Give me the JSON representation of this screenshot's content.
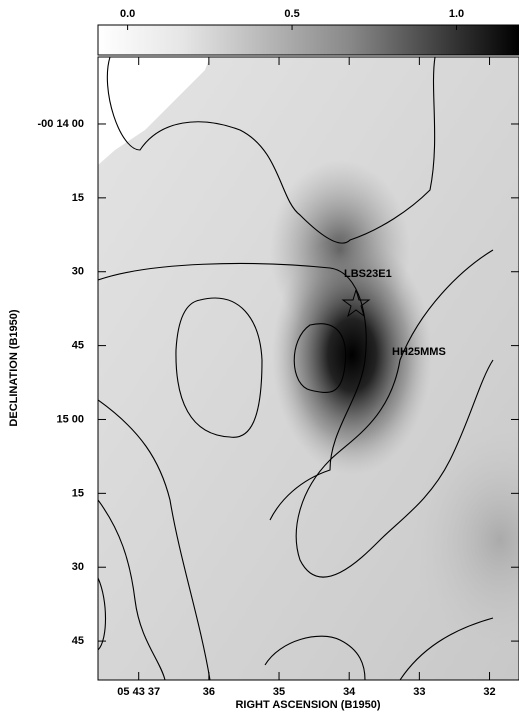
{
  "chart_data": {
    "type": "image",
    "x_label": "RIGHT ASCENSION (B1950)",
    "y_label": "DECLINATION (B1950)",
    "xlim": [
      37.58,
      31.58
    ],
    "xticks": [
      {
        "value": 37,
        "label": "05 43 37"
      },
      36,
      35,
      34,
      33,
      32
    ],
    "ylim": [
      -13.6,
      112.9
    ],
    "yticks": [
      {
        "value": 0,
        "label": "-00 14 00"
      },
      15,
      30,
      45,
      {
        "value": 60,
        "label": "15 00"
      },
      {
        "value": 75,
        "label": "15"
      },
      {
        "value": 90,
        "label": "30"
      },
      {
        "value": 105,
        "label": "45"
      }
    ],
    "colorbar_lim": [
      -0.09,
      1.19
    ],
    "colorbar_ticks": [
      {
        "value": 0,
        "label": "0.0"
      },
      0.5,
      {
        "value": 1,
        "label": "1.0"
      }
    ],
    "annotations": [
      "LBS23E1",
      "HH25MMS"
    ]
  }
}
